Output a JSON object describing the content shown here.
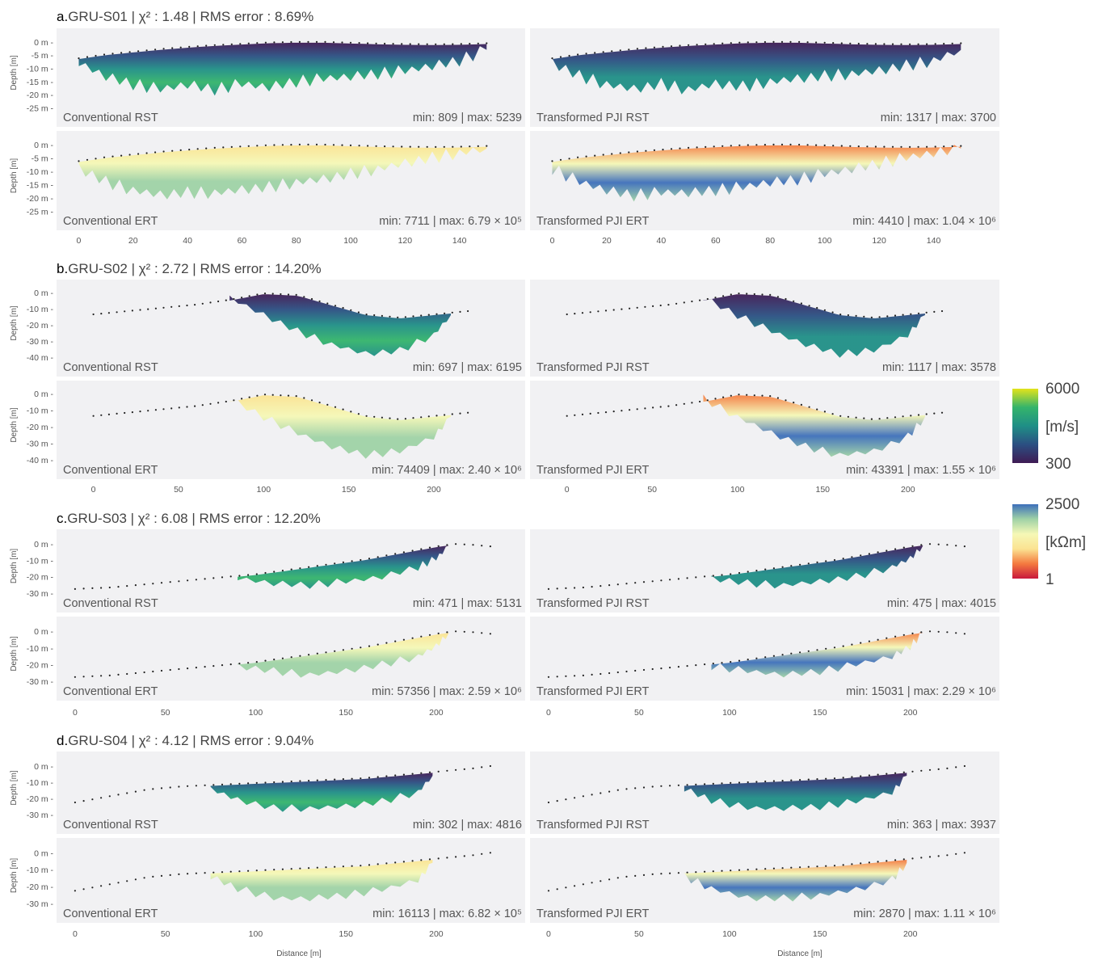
{
  "colors": {
    "background": "#f1f1f3",
    "velocity_scale": [
      "#3f1b54",
      "#2b4f82",
      "#1f8f86",
      "#34b46b",
      "#e3e31b"
    ],
    "resistivity_scale": [
      "#c8193c",
      "#f47a3f",
      "#fbe392",
      "#f5f8b6",
      "#9fd2a6",
      "#3d6fba"
    ]
  },
  "colorbars": [
    {
      "max_label": "6000",
      "unit": "[m/s]",
      "min_label": "300"
    },
    {
      "max_label": "2500",
      "unit": "[kΩm]",
      "min_label": "1"
    }
  ],
  "shared": {
    "depth_axis_label": "Depth [m]",
    "distance_axis_label": "Distance [m]"
  },
  "panels": [
    {
      "letter": "a.",
      "title": "GRU-S01 | χ² : 1.48 | RMS error : 8.69%",
      "depth_ticks": [
        "0 m",
        "-5 m",
        "-10 m",
        "-15 m",
        "-20 m",
        "-25 m"
      ],
      "x_ticks": [
        0,
        20,
        40,
        60,
        80,
        100,
        120,
        140
      ],
      "xlim": [
        -4,
        160
      ],
      "ylim": [
        -25.5,
        1.5
      ],
      "surface": {
        "x": [
          0,
          10,
          20,
          30,
          40,
          50,
          60,
          70,
          80,
          90,
          100,
          110,
          120,
          130,
          140,
          150
        ],
        "y": [
          -6.5,
          -5,
          -4,
          -3,
          -2.2,
          -1.5,
          -1,
          -0.5,
          -0.3,
          -0.3,
          -0.6,
          -0.9,
          -1.1,
          -1.2,
          -1.1,
          -0.8
        ]
      },
      "bottom_rst": {
        "x": [
          0,
          10,
          20,
          30,
          40,
          50,
          60,
          70,
          80,
          90,
          100,
          110,
          120,
          130,
          140,
          150
        ],
        "y": [
          -8,
          -13,
          -16,
          -18,
          -16,
          -18,
          -16,
          -17,
          -15,
          -14,
          -13,
          -12,
          -11,
          -9,
          -7,
          -3
        ]
      },
      "bottom_ert": {
        "x": [
          0,
          10,
          20,
          30,
          40,
          50,
          60,
          70,
          80,
          90,
          100,
          110,
          120,
          130,
          140,
          150
        ],
        "y": [
          -9,
          -14,
          -17,
          -19,
          -18,
          -18,
          -17,
          -16,
          -14,
          -13,
          -11,
          -9,
          -7,
          -5,
          -3,
          -1.5
        ]
      },
      "rst_conv": {
        "label": "Conventional RST",
        "range": "min: 809 | max: 5239"
      },
      "rst_pji": {
        "label": "Transformed PJI RST",
        "range": "min: 1317 | max: 3700"
      },
      "ert_conv": {
        "label": "Conventional ERT",
        "range": "min: 7711 | max: 6.79 × 10⁵"
      },
      "ert_pji": {
        "label": "Transformed PJI ERT",
        "range": "min: 4410 | max: 1.04 × 10⁶"
      }
    },
    {
      "letter": "b.",
      "title": "GRU-S02 | χ² : 2.72 | RMS error : 14.20%",
      "depth_ticks": [
        "0 m",
        "-10 m",
        "-20 m",
        "-30 m",
        "-40 m"
      ],
      "x_ticks": [
        0,
        50,
        100,
        150,
        200
      ],
      "xlim": [
        -15,
        247
      ],
      "ylim": [
        -41,
        2
      ],
      "surface": {
        "x": [
          0,
          20,
          40,
          60,
          80,
          100,
          120,
          140,
          160,
          180,
          200,
          220
        ],
        "y": [
          -14,
          -12,
          -10,
          -8,
          -5,
          -1,
          -2,
          -8,
          -14,
          -16,
          -14,
          -12
        ]
      },
      "bottom_rst": {
        "x": [
          80,
          100,
          120,
          140,
          160,
          180,
          200,
          210
        ],
        "y": [
          -3,
          -14,
          -24,
          -32,
          -38,
          -36,
          -26,
          -14
        ]
      },
      "bottom_ert": {
        "x": [
          80,
          100,
          120,
          140,
          160,
          180,
          200,
          210
        ],
        "y": [
          -3,
          -14,
          -24,
          -32,
          -37,
          -35,
          -26,
          -14
        ]
      },
      "rst_conv": {
        "label": "Conventional RST",
        "range": "min: 697 | max: 6195"
      },
      "rst_pji": {
        "label": "Transformed PJI RST",
        "range": "min: 1117 | max: 3578"
      },
      "ert_conv": {
        "label": "Conventional ERT",
        "range": "min: 74409 | max: 2.40 × 10⁶"
      },
      "ert_pji": {
        "label": "Transformed PJI ERT",
        "range": "min: 43391 | max: 1.55 × 10⁶"
      }
    },
    {
      "letter": "c.",
      "title": "GRU-S03 | χ² : 6.08 | RMS error : 12.20%",
      "depth_ticks": [
        "0 m",
        "-10 m",
        "-20 m",
        "-30 m"
      ],
      "x_ticks": [
        0,
        50,
        100,
        150,
        200
      ],
      "xlim": [
        -4,
        243
      ],
      "ylim": [
        -31,
        3
      ],
      "surface": {
        "x": [
          0,
          20,
          40,
          60,
          80,
          100,
          120,
          140,
          160,
          180,
          200,
          210,
          220,
          230
        ],
        "y": [
          -28,
          -27,
          -25,
          -23,
          -21,
          -19,
          -16,
          -13,
          -10,
          -6,
          -2,
          -0.5,
          -1,
          -2
        ]
      },
      "bottom_rst": {
        "x": [
          90,
          110,
          130,
          150,
          170,
          190,
          200,
          207
        ],
        "y": [
          -21,
          -24,
          -25,
          -23,
          -20,
          -14,
          -9,
          -1
        ]
      },
      "bottom_ert": {
        "x": [
          90,
          110,
          130,
          150,
          170,
          190,
          200,
          207
        ],
        "y": [
          -21,
          -24,
          -26,
          -24,
          -20,
          -15,
          -9,
          -1
        ]
      },
      "rst_conv": {
        "label": "Conventional RST",
        "range": "min: 471 | max: 5131"
      },
      "rst_pji": {
        "label": "Transformed PJI RST",
        "range": "min: 475 | max: 4015"
      },
      "ert_conv": {
        "label": "Conventional ERT",
        "range": "min: 57356 | max: 2.59 × 10⁶"
      },
      "ert_pji": {
        "label": "Transformed PJI ERT",
        "range": "min: 15031 | max: 2.29 × 10⁶"
      }
    },
    {
      "letter": "d.",
      "title": "GRU-S04 | χ² : 4.12 | RMS error : 9.04%",
      "depth_ticks": [
        "0 m",
        "-10 m",
        "-20 m",
        "-30 m"
      ],
      "x_ticks": [
        0,
        50,
        100,
        150,
        200
      ],
      "xlim": [
        -4,
        243
      ],
      "ylim": [
        -31,
        3
      ],
      "surface": {
        "x": [
          0,
          20,
          40,
          60,
          80,
          100,
          120,
          140,
          160,
          180,
          200,
          220,
          230
        ],
        "y": [
          -23,
          -19,
          -15,
          -13,
          -12,
          -11,
          -10,
          -9,
          -8,
          -6,
          -4,
          -2,
          -0.5
        ]
      },
      "bottom_rst": {
        "x": [
          75,
          90,
          110,
          130,
          150,
          170,
          190,
          198
        ],
        "y": [
          -14,
          -21,
          -26,
          -26,
          -25,
          -22,
          -16,
          -6
        ]
      },
      "bottom_ert": {
        "x": [
          75,
          90,
          110,
          130,
          150,
          170,
          190,
          198
        ],
        "y": [
          -14,
          -21,
          -27,
          -27,
          -25,
          -22,
          -16,
          -6
        ]
      },
      "rst_conv": {
        "label": "Conventional RST",
        "range": "min: 302 | max: 4816"
      },
      "rst_pji": {
        "label": "Transformed PJI RST",
        "range": "min: 363 | max: 3937"
      },
      "ert_conv": {
        "label": "Conventional ERT",
        "range": "min: 16113 | max: 6.82 × 10⁵"
      },
      "ert_pji": {
        "label": "Transformed PJI ERT",
        "range": "min: 2870 | max: 1.11 × 10⁶"
      }
    }
  ]
}
